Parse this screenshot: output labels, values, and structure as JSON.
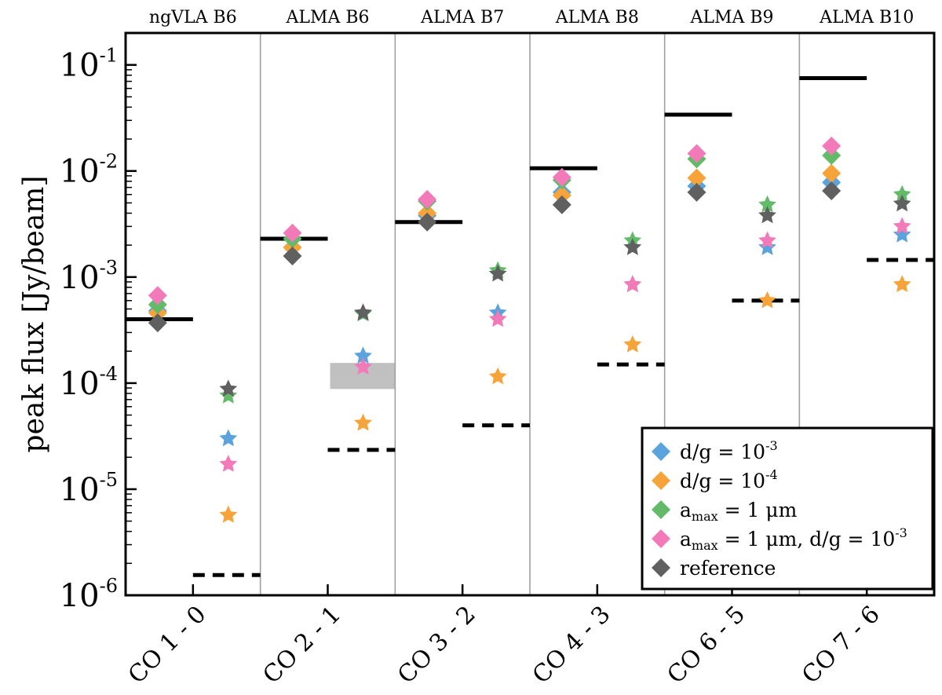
{
  "chart_data": {
    "type": "scatter",
    "ylabel": "peak flux [Jy/beam]",
    "yscale": "log",
    "ylim": [
      1e-06,
      0.2
    ],
    "ytick_base": "10",
    "yticks": [
      {
        "value": 1e-06,
        "exp": "-6"
      },
      {
        "value": 1e-05,
        "exp": "-5"
      },
      {
        "value": 0.0001,
        "exp": "-4"
      },
      {
        "value": 0.001,
        "exp": "-3"
      },
      {
        "value": 0.01,
        "exp": "-2"
      },
      {
        "value": 0.1,
        "exp": "-1"
      }
    ],
    "categories": [
      "CO 1 - 0",
      "CO 2 - 1",
      "CO 3 - 2",
      "CO 4 - 3",
      "CO 6 - 5",
      "CO 7 - 6"
    ],
    "bands": [
      "ngVLA B6",
      "ALMA B6",
      "ALMA B7",
      "ALMA B8",
      "ALMA B9",
      "ALMA B10"
    ],
    "colors": {
      "blue": "#5ba3dc",
      "orange": "#f6a33a",
      "green": "#63bb6a",
      "pink": "#f27ab8",
      "gray": "#606060",
      "shade": "#c0c0c0",
      "separator": "#a0a0a0",
      "line": "#000000"
    },
    "series": [
      {
        "name": "d/g = 10^-3",
        "color": "#5ba3dc",
        "diamond_values": [
          0.00048,
          0.0019,
          0.0038,
          0.0063,
          0.0072,
          0.0078
        ],
        "star_values": [
          3e-05,
          0.00018,
          0.00046,
          0.00085,
          0.0019,
          0.0025
        ]
      },
      {
        "name": "d/g = 10^-4",
        "color": "#f6a33a",
        "diamond_values": [
          0.00046,
          0.0019,
          0.004,
          0.0059,
          0.0086,
          0.0095
        ],
        "star_values": [
          5.7e-06,
          4.2e-05,
          0.000115,
          0.00023,
          0.0006,
          0.00085
        ]
      },
      {
        "name": "a_max = 1 um",
        "color": "#63bb6a",
        "diamond_values": [
          0.00055,
          0.0023,
          0.0052,
          0.0082,
          0.013,
          0.014
        ],
        "star_values": [
          7.6e-05,
          0.00045,
          0.00115,
          0.0022,
          0.0048,
          0.006
        ]
      },
      {
        "name": "a_max = 1 um, d/g = 10^-3",
        "color": "#f27ab8",
        "diamond_values": [
          0.00067,
          0.0026,
          0.0054,
          0.0087,
          0.0146,
          0.0172
        ],
        "star_values": [
          1.72e-05,
          0.000142,
          0.0004,
          0.00085,
          0.0022,
          0.003
        ]
      },
      {
        "name": "reference",
        "color": "#606060",
        "diamond_values": [
          0.00037,
          0.00158,
          0.0033,
          0.0048,
          0.0063,
          0.0065
        ],
        "star_values": [
          8.8e-05,
          0.00046,
          0.00107,
          0.0019,
          0.0038,
          0.0049
        ]
      }
    ],
    "solid_levels": [
      0.0004,
      0.0023,
      0.0033,
      0.0106,
      0.034,
      0.075
    ],
    "dashed_levels": [
      1.55e-06,
      2.35e-05,
      4e-05,
      0.00015,
      0.0006,
      0.00145
    ],
    "shaded_range": {
      "category_index": 1,
      "low": 8.8e-05,
      "high": 0.000155
    },
    "legend": {
      "position": "lower-right",
      "entries": [
        {
          "color": "#5ba3dc",
          "text": "d/g = 10",
          "sup": "-3",
          "tail": ""
        },
        {
          "color": "#f6a33a",
          "text": "d/g = 10",
          "sup": "-4",
          "tail": ""
        },
        {
          "color": "#63bb6a",
          "text": "a",
          "sub": "max",
          "rest": " = 1 μm"
        },
        {
          "color": "#f27ab8",
          "text": "a",
          "sub": "max",
          "rest": " = 1 μm, d/g = 10",
          "sup": "-3"
        },
        {
          "color": "#606060",
          "text": "reference"
        }
      ]
    }
  }
}
